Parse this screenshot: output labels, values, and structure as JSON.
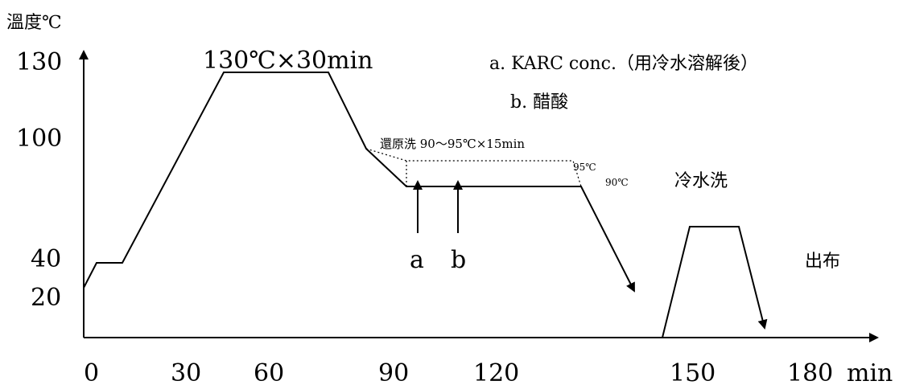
{
  "axes": {
    "y_label": "溫度℃",
    "x_unit": "min",
    "x_ticks": [
      "0",
      "30",
      "60",
      "90",
      "120",
      "150",
      "180"
    ],
    "y_ticks": [
      "130",
      "100",
      "40",
      "20"
    ]
  },
  "annotations": {
    "hold": "130℃×30min",
    "reduction_clear": "還原洗 90～95℃×15min",
    "temp_95": "95℃",
    "temp_90": "90℃",
    "cold_wash": "冷水洗",
    "unload": "出布",
    "addition_a": "a",
    "addition_b": "b"
  },
  "legend": {
    "a": "a. KARC conc.（用冷水溶解後）",
    "b": "b. 醋酸"
  }
}
